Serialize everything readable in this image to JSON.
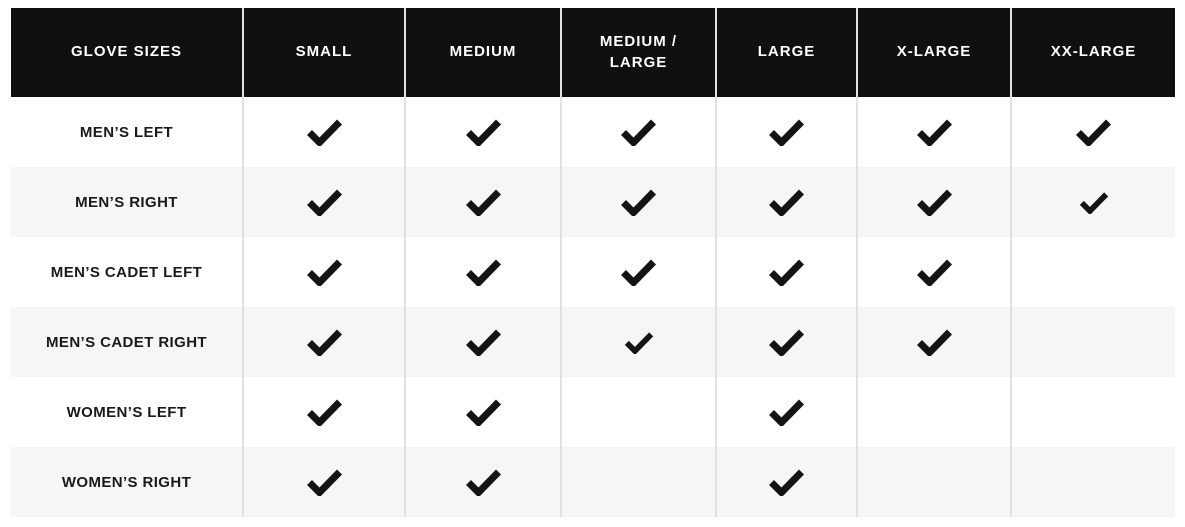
{
  "chart_data": {
    "type": "table",
    "title": "GLOVE SIZES",
    "columns": [
      "SMALL",
      "MEDIUM",
      "MEDIUM / LARGE",
      "LARGE",
      "X-LARGE",
      "XX-LARGE"
    ],
    "rows": [
      {
        "label": "MEN’S LEFT",
        "availability": [
          "yes",
          "yes",
          "yes",
          "yes",
          "yes",
          "yes"
        ]
      },
      {
        "label": "MEN’S RIGHT",
        "availability": [
          "yes",
          "yes",
          "yes",
          "yes",
          "yes",
          "yes-small"
        ]
      },
      {
        "label": "MEN’S CADET LEFT",
        "availability": [
          "yes",
          "yes",
          "yes",
          "yes",
          "yes",
          "no"
        ]
      },
      {
        "label": "MEN’S CADET RIGHT",
        "availability": [
          "yes",
          "yes",
          "yes-small",
          "yes",
          "yes",
          "no"
        ]
      },
      {
        "label": "WOMEN’S LEFT",
        "availability": [
          "yes",
          "yes",
          "no",
          "yes",
          "no",
          "no"
        ]
      },
      {
        "label": "WOMEN’S RIGHT",
        "availability": [
          "yes",
          "yes",
          "no",
          "yes",
          "no",
          "no"
        ]
      }
    ],
    "legend": {
      "yes": "available (check mark)",
      "yes-small": "available (smaller check mark)",
      "no": "not available (blank cell)"
    },
    "layout": {
      "zebra_striping": "white / light gray alternating rows",
      "grid": "vertical column dividers only"
    }
  },
  "icons": {
    "check": "check-icon"
  },
  "colors": {
    "header_background": "#101010",
    "header_text": "#ffffff",
    "row_background": "#ffffff",
    "row_alt_background": "#f6f6f6",
    "divider": "#e1e1e1",
    "label_text": "#1a1a1a",
    "check": "#141414"
  }
}
